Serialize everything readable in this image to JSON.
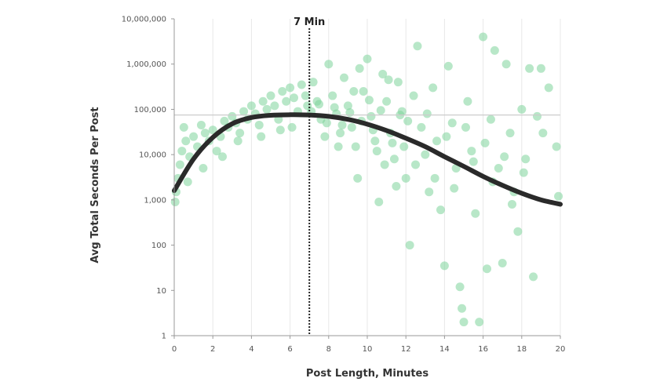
{
  "chart_data": {
    "type": "scatter",
    "xlabel": "Post Length, Minutes",
    "ylabel": "Avg Total Seconds Per Post",
    "xlim": [
      0,
      20
    ],
    "ylim": [
      1,
      10000000
    ],
    "yscale": "log",
    "x_ticks": [
      0,
      2,
      4,
      6,
      8,
      10,
      12,
      14,
      16,
      18,
      20
    ],
    "x_tick_labels": [
      "0",
      "2",
      "4",
      "6",
      "8",
      "10",
      "12",
      "14",
      "16",
      "18",
      "20"
    ],
    "y_ticks": [
      1,
      10,
      100,
      1000,
      10000,
      100000,
      1000000,
      10000000
    ],
    "y_tick_labels": [
      "1",
      "10",
      "100",
      "1,000",
      "10,000",
      "100,000",
      "1,000,000",
      "10,000,000"
    ],
    "grid": "vertical",
    "annotation": {
      "label": "7 Min",
      "x": 7,
      "ref_y": 75000
    },
    "series": [
      {
        "type": "curve",
        "points": [
          [
            0,
            1600
          ],
          [
            1,
            8000
          ],
          [
            2,
            24000
          ],
          [
            3,
            48000
          ],
          [
            4,
            66000
          ],
          [
            5,
            74000
          ],
          [
            6,
            76000
          ],
          [
            7,
            75000
          ],
          [
            8,
            70000
          ],
          [
            9,
            60000
          ],
          [
            10,
            47000
          ],
          [
            11,
            34000
          ],
          [
            12,
            23000
          ],
          [
            13,
            15000
          ],
          [
            14,
            9000
          ],
          [
            15,
            5500
          ],
          [
            16,
            3300
          ],
          [
            17,
            2100
          ],
          [
            18,
            1400
          ],
          [
            19,
            1000
          ],
          [
            20,
            800
          ]
        ]
      },
      {
        "type": "points",
        "points": [
          [
            0.05,
            900
          ],
          [
            0.1,
            1500
          ],
          [
            0.2,
            3000
          ],
          [
            0.3,
            6000
          ],
          [
            0.4,
            12000
          ],
          [
            0.5,
            40000
          ],
          [
            0.6,
            20000
          ],
          [
            0.8,
            9000
          ],
          [
            1.0,
            25000
          ],
          [
            1.2,
            15000
          ],
          [
            1.4,
            45000
          ],
          [
            1.6,
            30000
          ],
          [
            1.8,
            20000
          ],
          [
            2.0,
            35000
          ],
          [
            2.2,
            12000
          ],
          [
            2.4,
            25000
          ],
          [
            2.6,
            55000
          ],
          [
            2.8,
            40000
          ],
          [
            3.0,
            70000
          ],
          [
            3.2,
            50000
          ],
          [
            3.4,
            30000
          ],
          [
            3.6,
            90000
          ],
          [
            3.8,
            60000
          ],
          [
            4.0,
            120000
          ],
          [
            4.2,
            80000
          ],
          [
            4.4,
            45000
          ],
          [
            4.6,
            150000
          ],
          [
            4.8,
            100000
          ],
          [
            5.0,
            200000
          ],
          [
            5.2,
            120000
          ],
          [
            5.4,
            60000
          ],
          [
            5.6,
            250000
          ],
          [
            5.8,
            150000
          ],
          [
            6.0,
            300000
          ],
          [
            6.2,
            180000
          ],
          [
            6.4,
            90000
          ],
          [
            6.6,
            350000
          ],
          [
            6.8,
            200000
          ],
          [
            7.2,
            400000
          ],
          [
            7.4,
            150000
          ],
          [
            7.6,
            60000
          ],
          [
            7.8,
            25000
          ],
          [
            8.0,
            1000000
          ],
          [
            8.2,
            200000
          ],
          [
            8.4,
            80000
          ],
          [
            8.6,
            30000
          ],
          [
            8.8,
            500000
          ],
          [
            9.0,
            120000
          ],
          [
            9.2,
            40000
          ],
          [
            9.4,
            15000
          ],
          [
            9.6,
            800000
          ],
          [
            9.8,
            250000
          ],
          [
            10.0,
            1300000
          ],
          [
            10.2,
            70000
          ],
          [
            10.4,
            20000
          ],
          [
            10.6,
            900
          ],
          [
            10.8,
            600000
          ],
          [
            11.0,
            150000
          ],
          [
            11.2,
            30000
          ],
          [
            11.4,
            8000
          ],
          [
            11.6,
            400000
          ],
          [
            11.8,
            90000
          ],
          [
            12.0,
            3000
          ],
          [
            12.2,
            100
          ],
          [
            12.4,
            200000
          ],
          [
            12.6,
            2500000
          ],
          [
            12.8,
            40000
          ],
          [
            13.0,
            10000
          ],
          [
            13.2,
            1500
          ],
          [
            13.4,
            300000
          ],
          [
            13.6,
            20000
          ],
          [
            13.8,
            600
          ],
          [
            14.0,
            35
          ],
          [
            14.2,
            900000
          ],
          [
            14.4,
            50000
          ],
          [
            14.6,
            5000
          ],
          [
            14.8,
            12
          ],
          [
            14.9,
            4
          ],
          [
            15.0,
            2
          ],
          [
            15.2,
            150000
          ],
          [
            15.4,
            12000
          ],
          [
            15.6,
            500
          ],
          [
            15.8,
            2
          ],
          [
            16.0,
            4000000
          ],
          [
            16.2,
            30
          ],
          [
            16.4,
            60000
          ],
          [
            16.6,
            2000000
          ],
          [
            16.8,
            5000
          ],
          [
            17.0,
            40
          ],
          [
            17.2,
            1000000
          ],
          [
            17.4,
            30000
          ],
          [
            17.6,
            1500
          ],
          [
            17.8,
            200
          ],
          [
            18.0,
            100000
          ],
          [
            18.2,
            8000
          ],
          [
            18.4,
            800000
          ],
          [
            18.6,
            20
          ],
          [
            18.8,
            70000
          ],
          [
            19.0,
            800000
          ],
          [
            19.4,
            300000
          ],
          [
            19.8,
            15000
          ],
          [
            19.9,
            1200
          ],
          [
            6.1,
            40000
          ],
          [
            6.9,
            120000
          ],
          [
            3.3,
            20000
          ],
          [
            4.5,
            25000
          ],
          [
            5.5,
            35000
          ],
          [
            2.5,
            9000
          ],
          [
            1.5,
            5000
          ],
          [
            0.7,
            2500
          ],
          [
            8.5,
            15000
          ],
          [
            9.5,
            3000
          ],
          [
            10.5,
            12000
          ],
          [
            11.5,
            2000
          ],
          [
            12.5,
            6000
          ],
          [
            13.5,
            3000
          ],
          [
            14.5,
            1800
          ],
          [
            15.5,
            7000
          ],
          [
            16.5,
            2500
          ],
          [
            17.5,
            800
          ],
          [
            12.1,
            55000
          ],
          [
            13.1,
            80000
          ],
          [
            14.1,
            25000
          ],
          [
            15.1,
            40000
          ],
          [
            16.1,
            18000
          ],
          [
            17.1,
            9000
          ],
          [
            18.1,
            4000
          ],
          [
            19.1,
            30000
          ],
          [
            7.1,
            90000
          ],
          [
            7.5,
            130000
          ],
          [
            7.9,
            50000
          ],
          [
            8.3,
            110000
          ],
          [
            8.7,
            45000
          ],
          [
            9.1,
            85000
          ],
          [
            9.3,
            250000
          ],
          [
            9.7,
            55000
          ],
          [
            10.1,
            160000
          ],
          [
            10.3,
            35000
          ],
          [
            10.7,
            95000
          ],
          [
            10.9,
            6000
          ],
          [
            11.1,
            450000
          ],
          [
            11.3,
            18000
          ],
          [
            11.7,
            75000
          ],
          [
            11.9,
            15000
          ]
        ]
      }
    ]
  },
  "colors": {
    "point": "#7dd49a",
    "curve": "#2a2a2a",
    "refline": "#cccccc",
    "grid": "#e8e8e8",
    "axis": "#999999",
    "annotation": "#222222"
  }
}
